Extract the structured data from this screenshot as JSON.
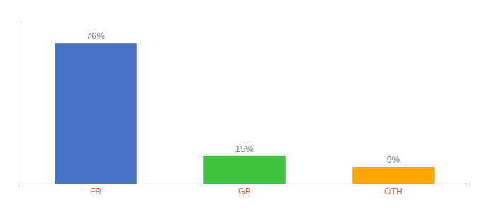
{
  "chart_data": {
    "type": "bar",
    "categories": [
      "FR",
      "GB",
      "OTH"
    ],
    "values": [
      76,
      15,
      9
    ],
    "value_labels": [
      "76%",
      "15%",
      "9%"
    ],
    "colors": [
      "#4472C4",
      "#3DC43D",
      "#FFA500"
    ],
    "ylim": [
      0,
      88
    ],
    "yticks": [],
    "grid": false,
    "data_labels": true,
    "tick_labels": "x"
  }
}
